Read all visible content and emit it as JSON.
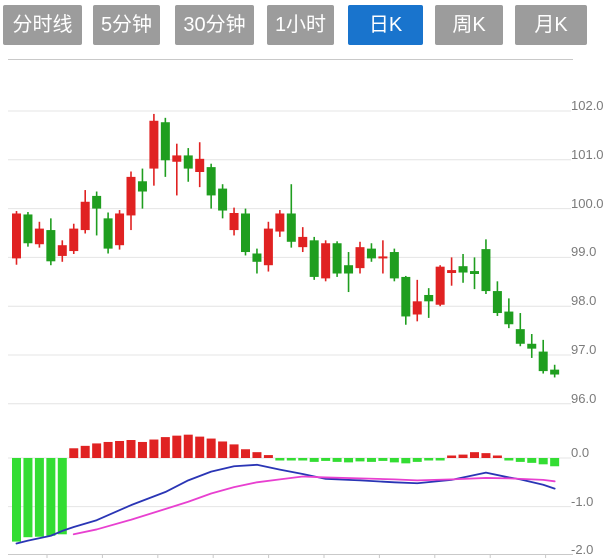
{
  "tabs": {
    "active_index": 4,
    "items": [
      {
        "label": "分时线"
      },
      {
        "label": "5分钟"
      },
      {
        "label": "30分钟"
      },
      {
        "label": "1小时"
      },
      {
        "label": "日K"
      },
      {
        "label": "周K"
      },
      {
        "label": "月K"
      }
    ]
  },
  "colors": {
    "up": "#e02222",
    "down": "#1f9e1f",
    "hist_down": "#33dd33",
    "dif_line": "#2a35b5",
    "dea_line": "#e840d0",
    "tab_active": "#1974cd",
    "tab_inactive": "#9c9c9c",
    "grid": "#e4e4e4",
    "border": "#c9c9c9",
    "axis_label": "#7b7b7b"
  },
  "chart_data": {
    "type": "candlestick",
    "convention": "red-up-green-down",
    "grid": true,
    "price_axis": {
      "side": "right",
      "ticks": [
        102.0,
        101.0,
        100.0,
        99.0,
        98.0,
        97.0,
        96.0
      ],
      "ylim": [
        95.7,
        103.0
      ],
      "tick_format": "%.1f"
    },
    "indicator_axis": {
      "side": "right",
      "ticks": [
        0.0,
        -1.0,
        -2.0
      ],
      "ylim": [
        -2.1,
        0.2
      ],
      "tick_format": "%.1f"
    },
    "candles_ohlc": [
      [
        98.98,
        99.95,
        98.85,
        99.9
      ],
      [
        99.88,
        99.93,
        99.22,
        99.29
      ],
      [
        99.27,
        99.73,
        99.2,
        99.59
      ],
      [
        99.56,
        99.8,
        98.84,
        98.92
      ],
      [
        99.03,
        99.35,
        98.91,
        99.25
      ],
      [
        99.13,
        99.69,
        99.07,
        99.59
      ],
      [
        99.56,
        100.38,
        99.49,
        100.14
      ],
      [
        100.26,
        100.35,
        99.45,
        100.0
      ],
      [
        99.8,
        99.92,
        99.08,
        99.18
      ],
      [
        99.25,
        99.97,
        99.16,
        99.9
      ],
      [
        99.86,
        100.76,
        99.56,
        100.65
      ],
      [
        100.56,
        100.82,
        100.0,
        100.35
      ],
      [
        100.82,
        101.94,
        100.47,
        101.8
      ],
      [
        101.77,
        101.86,
        100.65,
        100.99
      ],
      [
        100.96,
        101.33,
        100.27,
        101.09
      ],
      [
        101.09,
        101.24,
        100.55,
        100.82
      ],
      [
        100.75,
        101.36,
        100.44,
        101.02
      ],
      [
        100.85,
        100.92,
        100.0,
        100.27
      ],
      [
        100.41,
        100.5,
        99.8,
        99.96
      ],
      [
        99.56,
        100.02,
        99.45,
        99.91
      ],
      [
        99.9,
        100.0,
        99.04,
        99.11
      ],
      [
        99.08,
        99.18,
        98.67,
        98.91
      ],
      [
        98.84,
        99.73,
        98.71,
        99.59
      ],
      [
        99.53,
        99.97,
        99.42,
        99.9
      ],
      [
        99.9,
        100.5,
        99.2,
        99.32
      ],
      [
        99.21,
        99.62,
        99.11,
        99.42
      ],
      [
        99.35,
        99.42,
        98.54,
        98.6
      ],
      [
        98.57,
        99.35,
        98.51,
        99.29
      ],
      [
        99.29,
        99.33,
        98.6,
        98.67
      ],
      [
        98.84,
        99.11,
        98.29,
        98.67
      ],
      [
        98.78,
        99.32,
        98.67,
        99.21
      ],
      [
        99.18,
        99.29,
        98.91,
        98.98
      ],
      [
        98.98,
        99.35,
        98.67,
        99.02
      ],
      [
        99.11,
        99.18,
        98.51,
        98.57
      ],
      [
        98.6,
        98.62,
        97.62,
        97.79
      ],
      [
        97.83,
        98.54,
        97.69,
        98.1
      ],
      [
        98.23,
        98.37,
        97.76,
        98.1
      ],
      [
        98.03,
        98.84,
        98.0,
        98.81
      ],
      [
        98.68,
        99.0,
        98.42,
        98.74
      ],
      [
        98.82,
        99.07,
        98.48,
        98.69
      ],
      [
        98.72,
        99.0,
        98.35,
        98.66
      ],
      [
        99.17,
        99.37,
        98.25,
        98.31
      ],
      [
        98.31,
        98.51,
        97.8,
        97.86
      ],
      [
        97.89,
        98.16,
        97.55,
        97.63
      ],
      [
        97.53,
        97.86,
        97.18,
        97.23
      ],
      [
        97.23,
        97.43,
        96.94,
        97.13
      ],
      [
        97.07,
        97.31,
        96.62,
        96.67
      ],
      [
        96.7,
        96.8,
        96.54,
        96.6
      ]
    ],
    "macd": {
      "histogram": [
        -1.72,
        -1.63,
        -1.62,
        -1.6,
        -1.57,
        0.2,
        0.25,
        0.3,
        0.33,
        0.35,
        0.37,
        0.33,
        0.38,
        0.43,
        0.46,
        0.48,
        0.44,
        0.4,
        0.34,
        0.28,
        0.18,
        0.12,
        0.06,
        -0.03,
        -0.05,
        -0.04,
        -0.08,
        -0.06,
        -0.08,
        -0.09,
        -0.07,
        -0.08,
        -0.06,
        -0.09,
        -0.11,
        -0.08,
        -0.05,
        -0.03,
        0.05,
        0.07,
        0.12,
        0.1,
        0.04,
        -0.05,
        -0.08,
        -0.1,
        -0.13,
        -0.17
      ],
      "dif": [
        [
          0,
          -1.76
        ],
        [
          1,
          -1.7
        ],
        [
          3,
          -1.6
        ],
        [
          4,
          -1.5
        ],
        [
          5,
          -1.42
        ],
        [
          7,
          -1.28
        ],
        [
          10,
          -0.97
        ],
        [
          13,
          -0.7
        ],
        [
          15,
          -0.46
        ],
        [
          17,
          -0.28
        ],
        [
          19,
          -0.17
        ],
        [
          21,
          -0.14
        ],
        [
          23,
          -0.24
        ],
        [
          25,
          -0.33
        ],
        [
          27,
          -0.43
        ],
        [
          30,
          -0.46
        ],
        [
          33,
          -0.5
        ],
        [
          35,
          -0.52
        ],
        [
          38,
          -0.45
        ],
        [
          41,
          -0.3
        ],
        [
          43,
          -0.4
        ],
        [
          44,
          -0.44
        ],
        [
          46,
          -0.55
        ],
        [
          47,
          -0.63
        ]
      ],
      "dea": [
        [
          5,
          -1.57
        ],
        [
          7,
          -1.47
        ],
        [
          10,
          -1.27
        ],
        [
          13,
          -1.05
        ],
        [
          15,
          -0.9
        ],
        [
          17,
          -0.73
        ],
        [
          19,
          -0.6
        ],
        [
          21,
          -0.5
        ],
        [
          23,
          -0.44
        ],
        [
          25,
          -0.38
        ],
        [
          27,
          -0.4
        ],
        [
          30,
          -0.42
        ],
        [
          33,
          -0.44
        ],
        [
          35,
          -0.46
        ],
        [
          38,
          -0.44
        ],
        [
          41,
          -0.41
        ],
        [
          43,
          -0.42
        ],
        [
          44,
          -0.43
        ],
        [
          46,
          -0.45
        ],
        [
          47,
          -0.48
        ]
      ]
    }
  }
}
